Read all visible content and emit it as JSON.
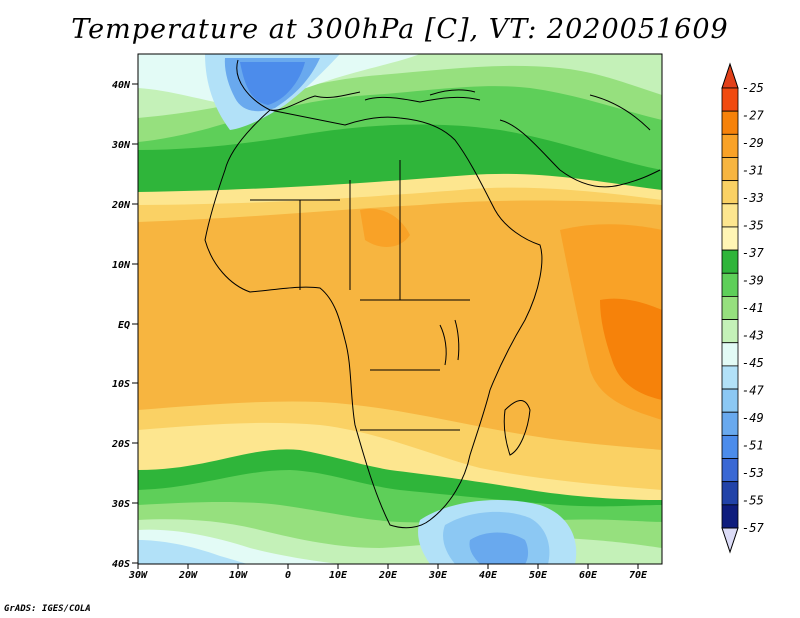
{
  "title": "Temperature at 300hPa [C], VT: 2020051609",
  "credit": "GrADS: IGES/COLA",
  "map": {
    "lat_labels": [
      "40N",
      "30N",
      "20N",
      "10N",
      "EQ",
      "10S",
      "20S",
      "30S",
      "40S"
    ],
    "lon_labels": [
      "30W",
      "20W",
      "10W",
      "0",
      "10E",
      "20E",
      "30E",
      "40E",
      "50E",
      "60E",
      "70E"
    ],
    "extent": {
      "lon": [
        -30,
        75
      ],
      "lat": [
        -40,
        45
      ]
    }
  },
  "colorbar": {
    "labels": [
      "-25",
      "-27",
      "-29",
      "-31",
      "-33",
      "-35",
      "-37",
      "-39",
      "-41",
      "-43",
      "-45",
      "-47",
      "-49",
      "-51",
      "-53",
      "-55",
      "-57"
    ],
    "colors": [
      "#f04a10",
      "#f6820a",
      "#f9a227",
      "#f7b540",
      "#fad164",
      "#fde68f",
      "#fff5b5",
      "#2fb53a",
      "#5ecf59",
      "#96e07e",
      "#c4f1b8",
      "#e3fbf6",
      "#b2e1f8",
      "#8cc8f3",
      "#69a9ee",
      "#4c8ceb",
      "#3a68d4",
      "#2243a8",
      "#0f1d7d"
    ],
    "top_arrow_color": "#e1401a",
    "bottom_arrow_color": "#dcdcf7"
  }
}
